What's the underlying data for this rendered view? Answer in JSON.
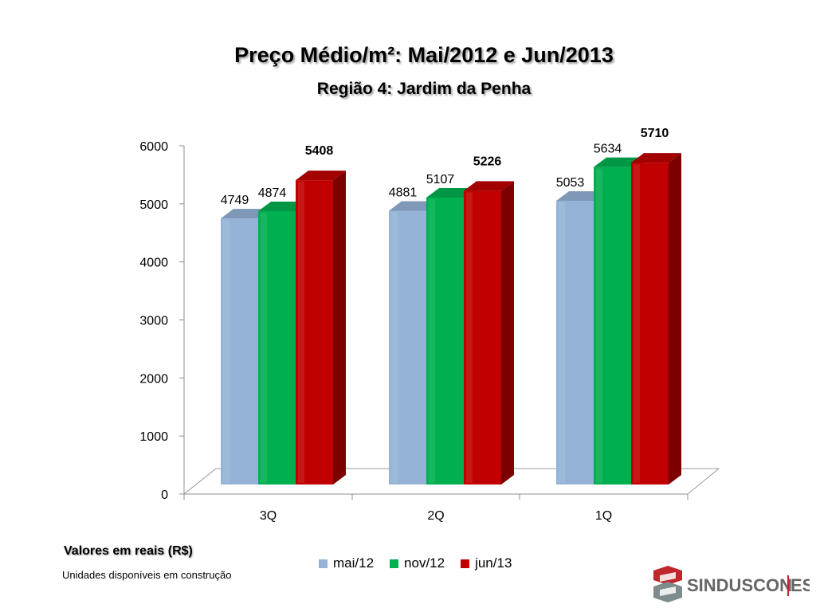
{
  "chart_data": {
    "type": "bar",
    "title": "Preço Médio/m²: Mai/2012 e Jun/2013",
    "subtitle": "Região 4: Jardim da Penha",
    "categories": [
      "3Q",
      "2Q",
      "1Q"
    ],
    "series": [
      {
        "name": "mai/12",
        "color": "#95b3d7",
        "values": [
          4749,
          4881,
          5053
        ]
      },
      {
        "name": "nov/12",
        "color": "#00b050",
        "values": [
          4874,
          5107,
          5634
        ]
      },
      {
        "name": "jun/13",
        "color": "#c00000",
        "values": [
          5408,
          5226,
          5710
        ]
      }
    ],
    "yticks": [
      "0",
      "1000",
      "2000",
      "3000",
      "4000",
      "5000",
      "6000"
    ],
    "ylim": [
      0,
      6000
    ],
    "bold_series": "jun/13",
    "legend_position": "bottom",
    "grid": false,
    "style": "3d-bar"
  },
  "notes": {
    "values_label": "Valores em reais (R$)",
    "units_label": "Unidades disponíveis em construção"
  },
  "logo": {
    "text": "SINDUSCON",
    "suffix": "ES",
    "color": "#666666",
    "accent": "#c0262c"
  }
}
